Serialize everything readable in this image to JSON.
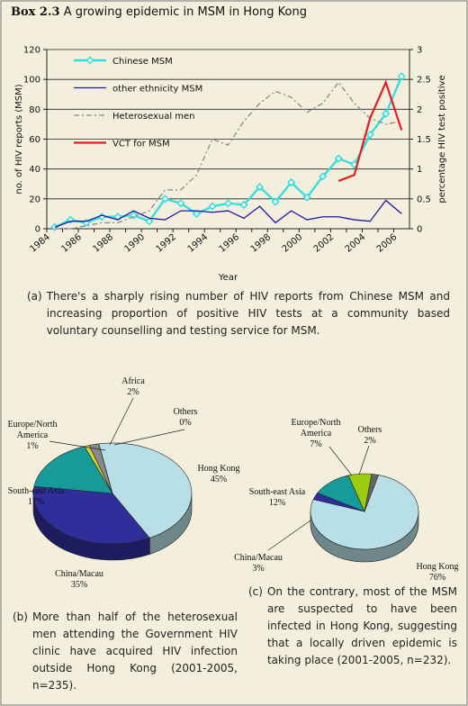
{
  "title_bold": "Box 2.3",
  "title": "A growing epidemic in MSM in Hong Kong",
  "chart_data": [
    {
      "type": "line",
      "categories": [
        "1984",
        null,
        "1986",
        null,
        "1988",
        null,
        "1990",
        null,
        "1992",
        null,
        "1994",
        null,
        "1996",
        null,
        "1998",
        null,
        "2000",
        null,
        "2002",
        null,
        "2004",
        null,
        "2006"
      ],
      "xlabel": "Year",
      "ylabel": "no. of HIV reports (MSM)",
      "y2label": "percentage HIV test positive",
      "ylim": [
        0,
        120
      ],
      "yticks": [
        0,
        20,
        40,
        60,
        80,
        100,
        120
      ],
      "y2lim": [
        0,
        3
      ],
      "y2ticks": [
        0,
        0.5,
        1,
        1.5,
        2,
        2.5,
        3
      ],
      "grid": true,
      "series": [
        {
          "name": "Chinese MSM",
          "color": "#33dede",
          "marker": "diamond",
          "line_style": "solid",
          "values": [
            1,
            6,
            4,
            8,
            8,
            9,
            5,
            20,
            17,
            10,
            15,
            17,
            16,
            28,
            18,
            31,
            21,
            35,
            47,
            43,
            63,
            77,
            102
          ]
        },
        {
          "name": "other ethnicity MSM",
          "color": "#1a1aa8",
          "line_style": "solid",
          "values": [
            1,
            5,
            5,
            9,
            6,
            12,
            7,
            6,
            12,
            12,
            11,
            12,
            7,
            15,
            4,
            12,
            6,
            8,
            8,
            6,
            5,
            19,
            10
          ]
        },
        {
          "name": "Heterosexual men",
          "color": "#888888",
          "line_style": "dashed",
          "axis": "y2",
          "values": [
            0,
            0,
            0.05,
            0.1,
            0.1,
            0.2,
            0.3,
            0.65,
            0.65,
            0.9,
            1.5,
            1.4,
            1.8,
            2.1,
            2.3,
            2.2,
            1.95,
            2.1,
            2.45,
            2.1,
            1.85,
            1.75,
            1.8
          ]
        },
        {
          "name": "VCT for MSM",
          "color": "#e02020",
          "line_style": "solid",
          "axis": "y2",
          "values": [
            null,
            null,
            null,
            null,
            null,
            null,
            null,
            null,
            null,
            null,
            null,
            null,
            null,
            null,
            null,
            null,
            null,
            null,
            0.8,
            0.9,
            1.85,
            2.45,
            1.65
          ]
        }
      ]
    },
    {
      "type": "pie",
      "categories": [
        "Hong Kong",
        "China/Macau",
        "South-east Asia",
        "Europe/North America",
        "Africa",
        "Others"
      ],
      "values": [
        45,
        35,
        17,
        1,
        2,
        0
      ],
      "value_labels": [
        "45%",
        "35%",
        "17%",
        "1%",
        "2%",
        "0%"
      ],
      "colors": [
        "#b9dfe6",
        "#2f2f9c",
        "#179a9a",
        "#d2d62a",
        "#8a8a8a",
        "#444444"
      ]
    },
    {
      "type": "pie",
      "categories": [
        "Hong Kong",
        "China/Macau",
        "South-east Asia",
        "Europe/North America",
        "Others"
      ],
      "values": [
        76,
        3,
        12,
        7,
        2
      ],
      "value_labels": [
        "76%",
        "3%",
        "12%",
        "7%",
        "2%"
      ],
      "colors": [
        "#b9dfe6",
        "#2f2f9c",
        "#179a9a",
        "#9ccc10",
        "#666666"
      ]
    }
  ],
  "captions": [
    {
      "marker": "(a)",
      "text": "There's a sharply rising number of HIV reports from Chinese MSM and increasing proportion of positive HIV tests at a community based voluntary counselling and testing service for MSM."
    },
    {
      "marker": "(b)",
      "text": "More than half of the heterosexual men attending the Government HIV clinic have acquired HIV infection outside Hong Kong (2001-2005, n=235)."
    },
    {
      "marker": "(c)",
      "text": "On the contrary, most of the MSM are suspected to have been infected in Hong Kong, suggesting that a locally driven epidemic is taking place (2001-2005, n=232)."
    }
  ]
}
